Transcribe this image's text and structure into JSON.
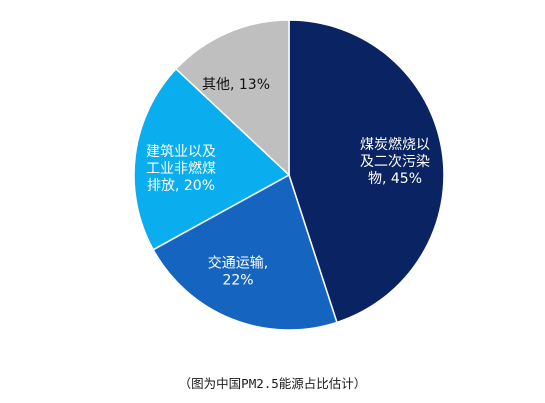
{
  "chart_data": {
    "type": "pie",
    "title": "",
    "slices": [
      {
        "label_lines": [
          "煤炭燃烧以",
          "及二次污染",
          "物, 45%"
        ],
        "value": 45,
        "color": "#0a2463",
        "label_color": "#ffffff"
      },
      {
        "label_lines": [
          "交通运输,",
          "22%"
        ],
        "value": 22,
        "color": "#1565c0",
        "label_color": "#ffffff"
      },
      {
        "label_lines": [
          "建筑业以及",
          "工业非燃煤",
          "排放, 20%"
        ],
        "value": 20,
        "color": "#0aaeef",
        "label_color": "#ffffff"
      },
      {
        "label_lines": [
          "其他, 13%"
        ],
        "value": 13,
        "color": "#bfbfbf",
        "label_color": "#111111"
      }
    ]
  },
  "caption": "（图为中国PM2.5能源占比估计）"
}
